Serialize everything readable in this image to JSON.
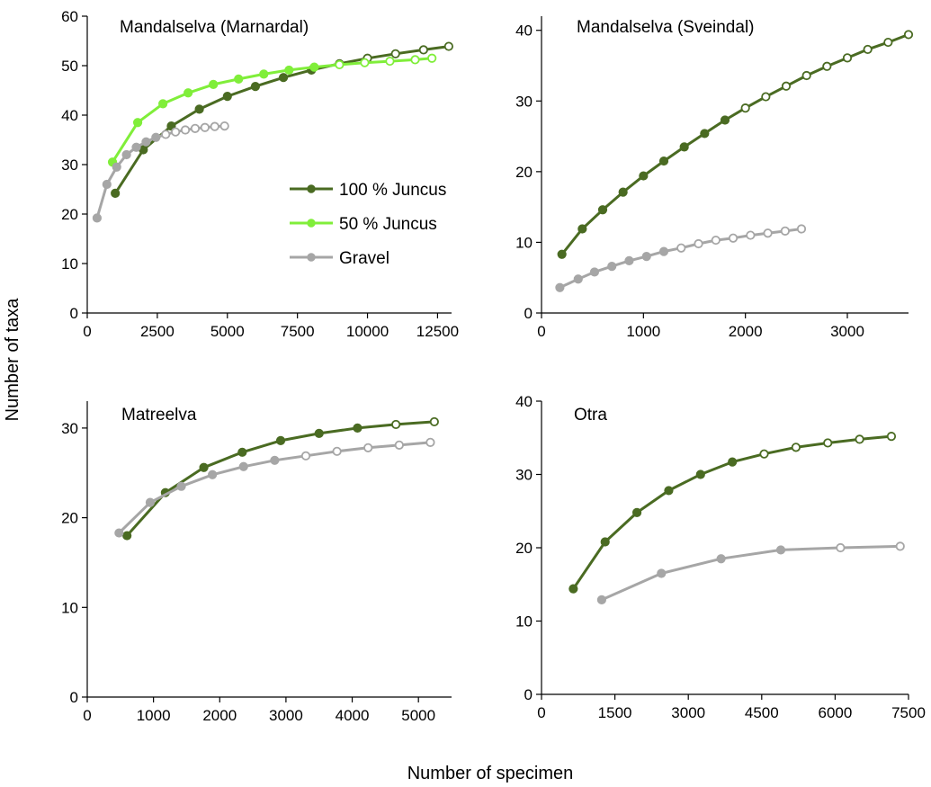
{
  "figure": {
    "ylabel": "Number of taxa",
    "xlabel": "Number of specimen"
  },
  "colors": {
    "juncus100": "#4a6b22",
    "juncus50": "#80ee3a",
    "gravel": "#a6a6a6"
  },
  "legend": {
    "items": [
      {
        "label": "100 % Juncus",
        "color": "#4a6b22"
      },
      {
        "label": "50 % Juncus",
        "color": "#80ee3a"
      },
      {
        "label": "Gravel",
        "color": "#a6a6a6"
      }
    ]
  },
  "chart_data": [
    {
      "type": "line",
      "title": "Mandalselva (Marnardal)",
      "xlim": [
        0,
        13000
      ],
      "ylim": [
        0,
        60
      ],
      "xticks": [
        0,
        2500,
        5000,
        7500,
        10000,
        12500
      ],
      "yticks": [
        0,
        10,
        20,
        30,
        40,
        50,
        60
      ],
      "series": [
        {
          "name": "100 % Juncus",
          "color": "#4a6b22",
          "x": [
            1000,
            2000,
            3000,
            4000,
            5000,
            6000,
            7000,
            8000,
            9000,
            10000,
            11000,
            12000,
            12900
          ],
          "y": [
            24.2,
            33,
            37.8,
            41.2,
            43.8,
            45.8,
            47.6,
            49.1,
            50.4,
            51.5,
            52.4,
            53.2,
            53.9
          ],
          "extrapolated_from": 9
        },
        {
          "name": "50 % Juncus",
          "color": "#80ee3a",
          "x": [
            900,
            1800,
            2700,
            3600,
            4500,
            5400,
            6300,
            7200,
            8100,
            9000,
            9900,
            10800,
            11700,
            12300
          ],
          "y": [
            30.5,
            38.5,
            42.3,
            44.5,
            46.2,
            47.3,
            48.3,
            49.1,
            49.7,
            50.2,
            50.6,
            50.9,
            51.2,
            51.5
          ],
          "extrapolated_from": 9
        },
        {
          "name": "Gravel",
          "color": "#a6a6a6",
          "x": [
            350,
            700,
            1050,
            1400,
            1750,
            2100,
            2450,
            2800,
            3150,
            3500,
            3850,
            4200,
            4550,
            4900
          ],
          "y": [
            19.2,
            26,
            29.5,
            32,
            33.5,
            34.6,
            35.5,
            36.1,
            36.6,
            37,
            37.3,
            37.5,
            37.7,
            37.8
          ],
          "extrapolated_from": 7
        }
      ]
    },
    {
      "type": "line",
      "title": "Mandalselva (Sveindal)",
      "xlim": [
        0,
        3600
      ],
      "ylim": [
        0,
        42
      ],
      "xticks": [
        0,
        1000,
        2000,
        3000
      ],
      "yticks": [
        0,
        10,
        20,
        30,
        40
      ],
      "series": [
        {
          "name": "100 % Juncus",
          "color": "#4a6b22",
          "x": [
            200,
            400,
            600,
            800,
            1000,
            1200,
            1400,
            1600,
            1800,
            2000,
            2200,
            2400,
            2600,
            2800,
            3000,
            3200,
            3400,
            3600
          ],
          "y": [
            8.3,
            11.9,
            14.6,
            17.1,
            19.4,
            21.5,
            23.5,
            25.4,
            27.3,
            29,
            30.6,
            32.1,
            33.6,
            34.9,
            36.1,
            37.3,
            38.3,
            39.4
          ],
          "extrapolated_from": 9
        },
        {
          "name": "Gravel",
          "color": "#a6a6a6",
          "x": [
            180,
            360,
            520,
            690,
            860,
            1030,
            1200,
            1370,
            1540,
            1710,
            1880,
            2050,
            2220,
            2390,
            2550
          ],
          "y": [
            3.6,
            4.8,
            5.8,
            6.6,
            7.4,
            8,
            8.7,
            9.2,
            9.8,
            10.3,
            10.6,
            11,
            11.3,
            11.6,
            11.9
          ],
          "extrapolated_from": 7
        }
      ]
    },
    {
      "type": "line",
      "title": "Matreelva",
      "xlim": [
        0,
        5500
      ],
      "ylim": [
        0,
        33
      ],
      "xticks": [
        0,
        1000,
        2000,
        3000,
        4000,
        5000
      ],
      "yticks": [
        0,
        10,
        20,
        30
      ],
      "series": [
        {
          "name": "100 % Juncus",
          "color": "#4a6b22",
          "x": [
            600,
            1180,
            1760,
            2340,
            2920,
            3500,
            4080,
            4660,
            5240
          ],
          "y": [
            18,
            22.8,
            25.6,
            27.3,
            28.6,
            29.4,
            30,
            30.4,
            30.7
          ],
          "extrapolated_from": 7
        },
        {
          "name": "Gravel",
          "color": "#a6a6a6",
          "x": [
            480,
            950,
            1420,
            1890,
            2360,
            2830,
            3300,
            3770,
            4240,
            4710,
            5180
          ],
          "y": [
            18.3,
            21.7,
            23.5,
            24.8,
            25.7,
            26.4,
            26.9,
            27.4,
            27.8,
            28.1,
            28.4
          ],
          "extrapolated_from": 6
        }
      ]
    },
    {
      "type": "line",
      "title": "Otra",
      "xlim": [
        0,
        7500
      ],
      "ylim": [
        0,
        40
      ],
      "xticks": [
        0,
        1500,
        3000,
        4500,
        6000,
        7500
      ],
      "yticks": [
        0,
        10,
        20,
        30,
        40
      ],
      "series": [
        {
          "name": "100 % Juncus",
          "color": "#4a6b22",
          "x": [
            650,
            1300,
            1950,
            2600,
            3250,
            3900,
            4550,
            5200,
            5850,
            6500,
            7150
          ],
          "y": [
            14.4,
            20.8,
            24.8,
            27.8,
            30,
            31.7,
            32.8,
            33.7,
            34.3,
            34.8,
            35.2
          ],
          "extrapolated_from": 6
        },
        {
          "name": "Gravel",
          "color": "#a6a6a6",
          "x": [
            1230,
            2450,
            3670,
            4890,
            6110,
            7330
          ],
          "y": [
            12.9,
            16.5,
            18.5,
            19.7,
            20,
            20.2
          ],
          "extrapolated_from": 4
        }
      ]
    }
  ]
}
